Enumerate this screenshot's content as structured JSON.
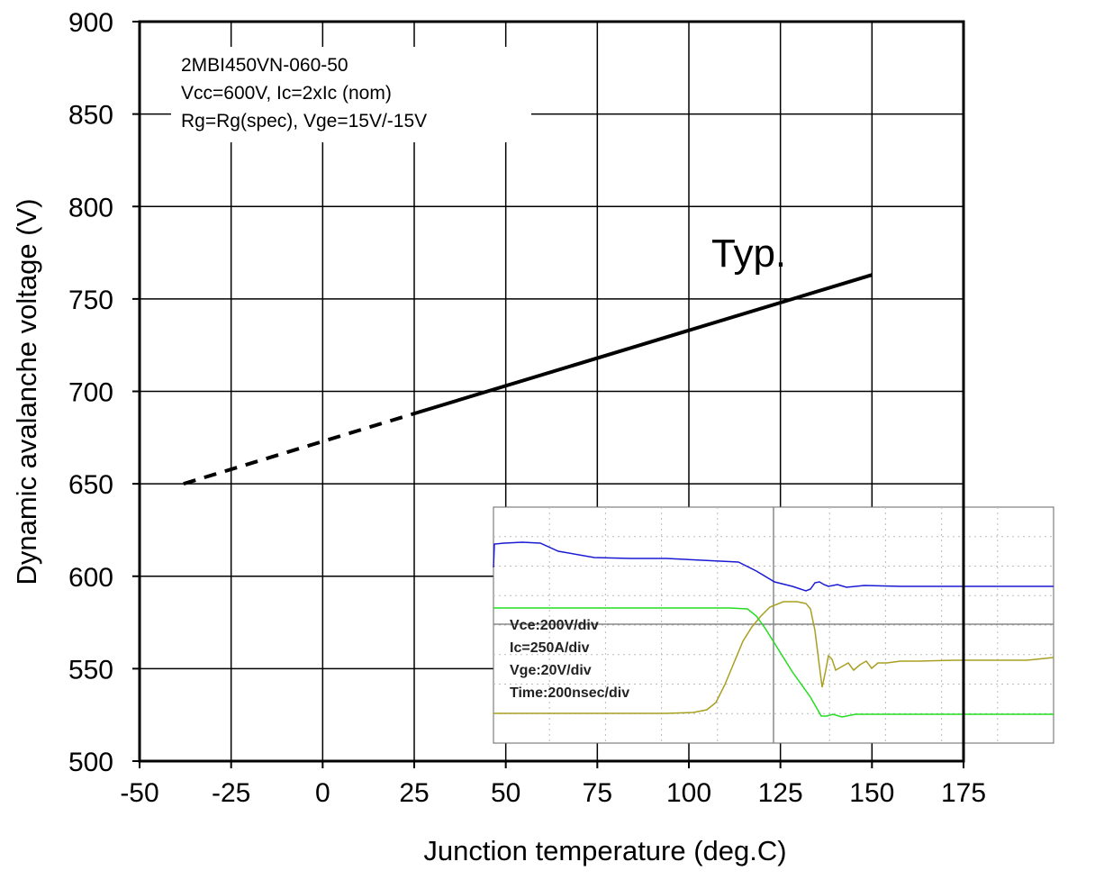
{
  "chart_data": {
    "type": "line",
    "title": "",
    "xlabel": "Junction temperature (deg.C)",
    "ylabel": "Dynamic avalanche voltage (V)",
    "xlim": [
      -50,
      175
    ],
    "ylim": [
      500,
      900
    ],
    "x_ticks": [
      -50,
      -25,
      0,
      25,
      50,
      75,
      100,
      125,
      150,
      175
    ],
    "y_ticks": [
      500,
      550,
      600,
      650,
      700,
      750,
      800,
      850,
      900
    ],
    "x_tick_labels": [
      "-50",
      "-25",
      "0",
      "25",
      "50",
      "75",
      "100",
      "125",
      "150",
      "175"
    ],
    "y_tick_labels": [
      "500",
      "550",
      "600",
      "650",
      "700",
      "750",
      "800",
      "850",
      "900"
    ],
    "grid": true,
    "series": [
      {
        "name": "",
        "style": "dashed",
        "color": "#000000",
        "x": [
          -38,
          25
        ],
        "y": [
          650,
          688
        ]
      },
      {
        "name": "",
        "style": "solid",
        "color": "#000000",
        "x": [
          25,
          150
        ],
        "y": [
          688,
          763
        ]
      }
    ],
    "annotations": {
      "device_note": [
        "2MBI450VN-060-50",
        "Vcc=600V, Ic=2xIc (nom)",
        "Rg=Rg(spec), Vge=15V/-15V"
      ],
      "typ_label": "Typ.",
      "inset_labels": [
        "Vce:200V/div",
        "Ic=250A/div",
        "Vge:20V/div",
        "Time:200nsec/div"
      ]
    },
    "inset": {
      "description_colors": {
        "vce": "#1a1ad4",
        "ic": "#a8a020",
        "vge": "#22dd22"
      }
    }
  }
}
